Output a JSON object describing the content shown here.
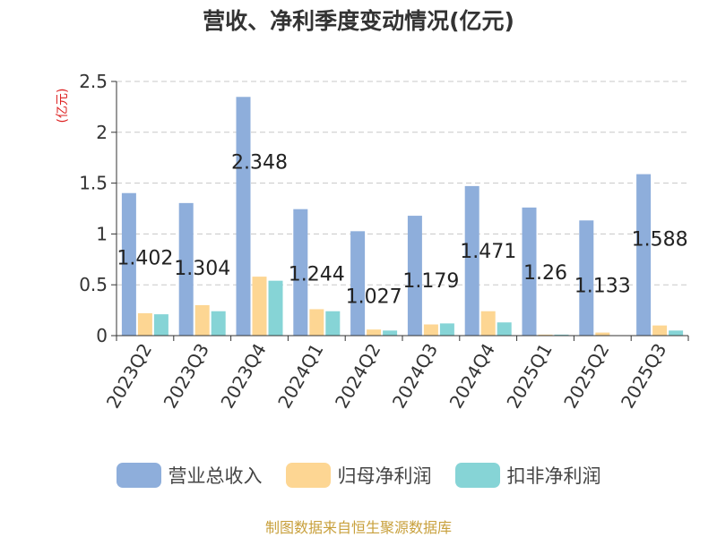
{
  "chart_data": {
    "type": "bar",
    "title": "营收、净利季度变动情况(亿元)",
    "ylabel": "(亿元)",
    "ylim": [
      0,
      2.5
    ],
    "yticks": [
      "0",
      "0.5",
      "1",
      "1.5",
      "2",
      "2.5"
    ],
    "grid": true,
    "legend_position": "bottom",
    "categories": [
      "2023Q2",
      "2023Q3",
      "2023Q4",
      "2024Q1",
      "2024Q2",
      "2024Q3",
      "2024Q4",
      "2025Q1",
      "2025Q2",
      "2025Q3"
    ],
    "series": [
      {
        "name": "营业总收入",
        "color": "#8eaedb",
        "values": [
          1.402,
          1.304,
          2.348,
          1.244,
          1.027,
          1.179,
          1.471,
          1.26,
          1.133,
          1.588
        ]
      },
      {
        "name": "归母净利润",
        "color": "#fdd693",
        "values": [
          0.22,
          0.3,
          0.58,
          0.26,
          0.06,
          0.11,
          0.24,
          0.01,
          0.03,
          0.1
        ]
      },
      {
        "name": "扣非净利润",
        "color": "#86d4d6",
        "values": [
          0.21,
          0.24,
          0.54,
          0.24,
          0.05,
          0.12,
          0.13,
          0.01,
          0.0,
          0.05
        ]
      }
    ],
    "data_labels": [
      "1.402",
      "1.304",
      "2.348",
      "1.244",
      "1.027",
      "1.179",
      "1.471",
      "1.26",
      "1.133",
      "1.588"
    ],
    "source": "制图数据来自恒生聚源数据库"
  }
}
